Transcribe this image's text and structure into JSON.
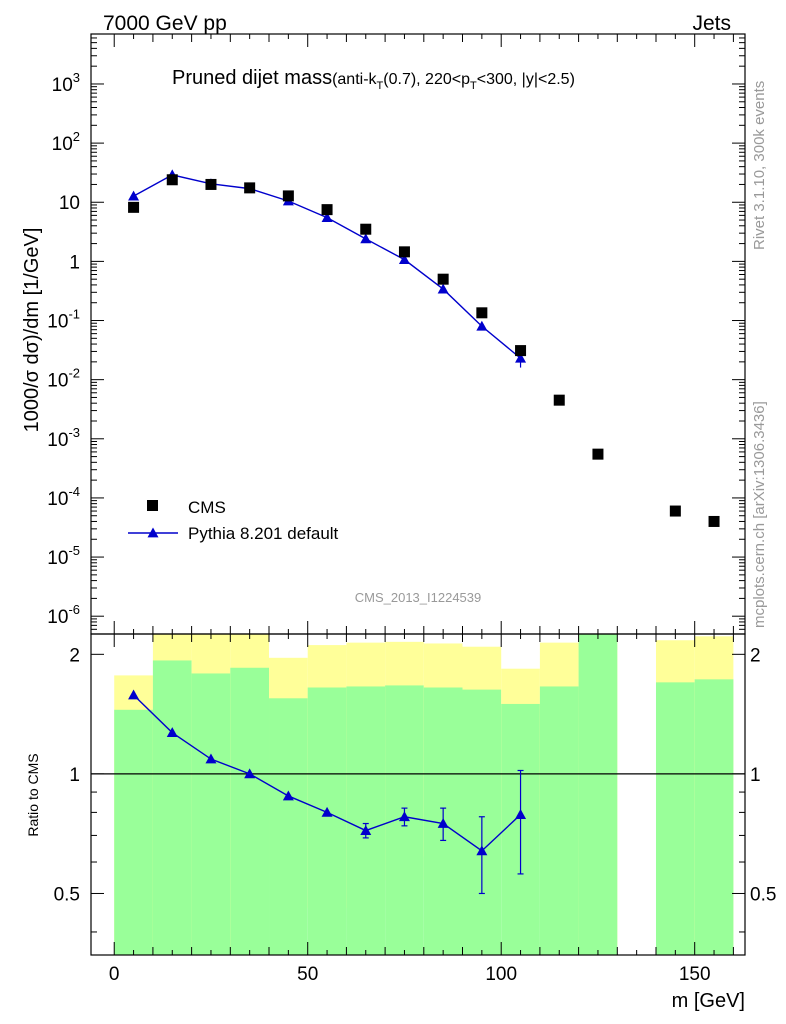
{
  "header": {
    "left": "7000 GeV pp",
    "right": "Jets"
  },
  "side": {
    "rivet": "Rivet 3.1.10,  300k events",
    "mcplots": "mcplots.cern.ch [arXiv:1306.3436]"
  },
  "watermark": "CMS_2013_I1224539",
  "title": {
    "main": "Pruned dijet mass",
    "paren_open": "(anti-k",
    "sub_T": "T",
    "mid": "(0.7), 220<p",
    "sub_T2": "T",
    "tail": "<300, |y|<2.5)"
  },
  "colors": {
    "data": "#000000",
    "mc": "#0000cc",
    "band_stat": "#99ff99",
    "band_tot": "#ffff99"
  },
  "chart_data": [
    {
      "type": "scatter",
      "ylabel": "1000/σ dσ)/dm [1/GeV]",
      "yscale": "log",
      "ylim": [
        5e-07,
        7000
      ],
      "xlim": [
        -6,
        163
      ],
      "ytick_labels": [
        "10^-6",
        "10^-5",
        "10^-4",
        "10^-3",
        "10^-2",
        "10^-1",
        "1",
        "10",
        "10^2",
        "10^3"
      ],
      "legend": [
        "CMS",
        "Pythia 8.201 default"
      ],
      "legend_position": "lower-left",
      "series": [
        {
          "name": "CMS",
          "marker": "square",
          "x": [
            5,
            15,
            25,
            35,
            45,
            55,
            65,
            75,
            85,
            95,
            105,
            115,
            125,
            145,
            155
          ],
          "y": [
            8.2,
            24,
            20,
            17.5,
            12.8,
            7.5,
            3.5,
            1.45,
            0.5,
            0.135,
            0.031,
            0.0045,
            0.00055,
            6e-05,
            4e-05
          ]
        },
        {
          "name": "Pythia 8.201 default",
          "marker": "triangle",
          "x": [
            5,
            15,
            25,
            35,
            45,
            55,
            65,
            75,
            85,
            95,
            105
          ],
          "y": [
            12.7,
            29,
            20.5,
            17,
            10.5,
            5.5,
            2.4,
            1.07,
            0.34,
            0.08,
            0.023
          ],
          "err": [
            0,
            0,
            0,
            0,
            0,
            0,
            0,
            0,
            0,
            0,
            0.007
          ]
        }
      ]
    },
    {
      "type": "line",
      "ylabel": "Ratio to CMS",
      "xlabel": "m [GeV]",
      "xlim": [
        -6,
        163
      ],
      "ylim": [
        0.35,
        2.25
      ],
      "xticks": [
        0,
        50,
        100,
        150
      ],
      "yticks": [
        0.5,
        1,
        2
      ],
      "reference_line": 1,
      "bands": {
        "bin_edges": [
          0,
          10,
          20,
          30,
          40,
          50,
          60,
          70,
          80,
          90,
          100,
          110,
          120,
          130,
          140,
          150,
          160
        ],
        "stat_low": [
          0.35,
          0.35,
          0.35,
          0.35,
          0.35,
          0.35,
          0.35,
          0.35,
          0.35,
          0.35,
          0.35,
          0.35,
          0.35,
          null,
          0.35,
          0.35
        ],
        "stat_high": [
          1.45,
          1.93,
          1.79,
          1.85,
          1.55,
          1.65,
          1.66,
          1.67,
          1.65,
          1.63,
          1.5,
          1.66,
          2.25,
          null,
          1.7,
          1.73
        ],
        "tot_low": [
          0.35,
          0.35,
          0.35,
          0.35,
          0.57,
          0.46,
          0.46,
          0.54,
          0.62,
          0.66,
          0.71,
          0.71,
          0.35,
          null,
          0.35,
          0.35
        ],
        "tot_high": [
          1.77,
          2.25,
          2.25,
          2.25,
          1.96,
          2.11,
          2.14,
          2.15,
          2.13,
          2.09,
          1.84,
          2.14,
          2.25,
          null,
          2.17,
          2.22
        ]
      },
      "series": [
        {
          "name": "Pythia 8.201 default",
          "x": [
            5,
            15,
            25,
            35,
            45,
            55,
            65,
            75,
            85,
            95,
            105
          ],
          "y": [
            1.58,
            1.27,
            1.09,
            1.0,
            0.88,
            0.8,
            0.72,
            0.78,
            0.75,
            0.64,
            0.79
          ],
          "err": [
            0,
            0,
            0,
            0,
            0,
            0,
            0.03,
            0.04,
            0.07,
            0.14,
            0.23
          ]
        }
      ]
    }
  ]
}
